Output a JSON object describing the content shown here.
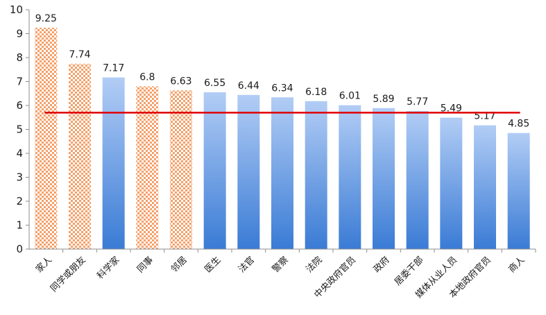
{
  "chart_data": {
    "type": "bar",
    "categories": [
      "家人",
      "同学或朋友",
      "科学家",
      "同事",
      "邻居",
      "医生",
      "法官",
      "警察",
      "法院",
      "中央政府官员",
      "政府",
      "居委干部",
      "媒体从业人员",
      "本地政府官员",
      "商人"
    ],
    "values": [
      9.25,
      7.74,
      7.17,
      6.8,
      6.63,
      6.55,
      6.44,
      6.34,
      6.18,
      6.01,
      5.89,
      5.77,
      5.49,
      5.17,
      4.85
    ],
    "value_labels": [
      "9.25",
      "7.74",
      "7.17",
      "6.8",
      "6.63",
      "6.55",
      "6.44",
      "6.34",
      "6.18",
      "6.01",
      "5.89",
      "5.77",
      "5.49",
      "5.17",
      "4.85"
    ],
    "bar_style": [
      "pattern",
      "pattern",
      "solid",
      "pattern",
      "pattern",
      "solid",
      "solid",
      "solid",
      "solid",
      "solid",
      "solid",
      "solid",
      "solid",
      "solid",
      "solid"
    ],
    "reference_line": {
      "value": 5.7,
      "color": "#e00000"
    },
    "yticks": [
      "0",
      "1",
      "2",
      "3",
      "4",
      "5",
      "6",
      "7",
      "8",
      "9",
      "10"
    ],
    "ylim": [
      0,
      10
    ],
    "title": "",
    "xlabel": "",
    "ylabel": "",
    "grid": false,
    "legend": "none",
    "colors": {
      "solid_top": "#b2cdf5",
      "solid_bottom": "#3a7bd5",
      "pattern_primary": "#f4a06a",
      "pattern_secondary": "#ffffff",
      "axis": "#8c8c8c"
    }
  }
}
